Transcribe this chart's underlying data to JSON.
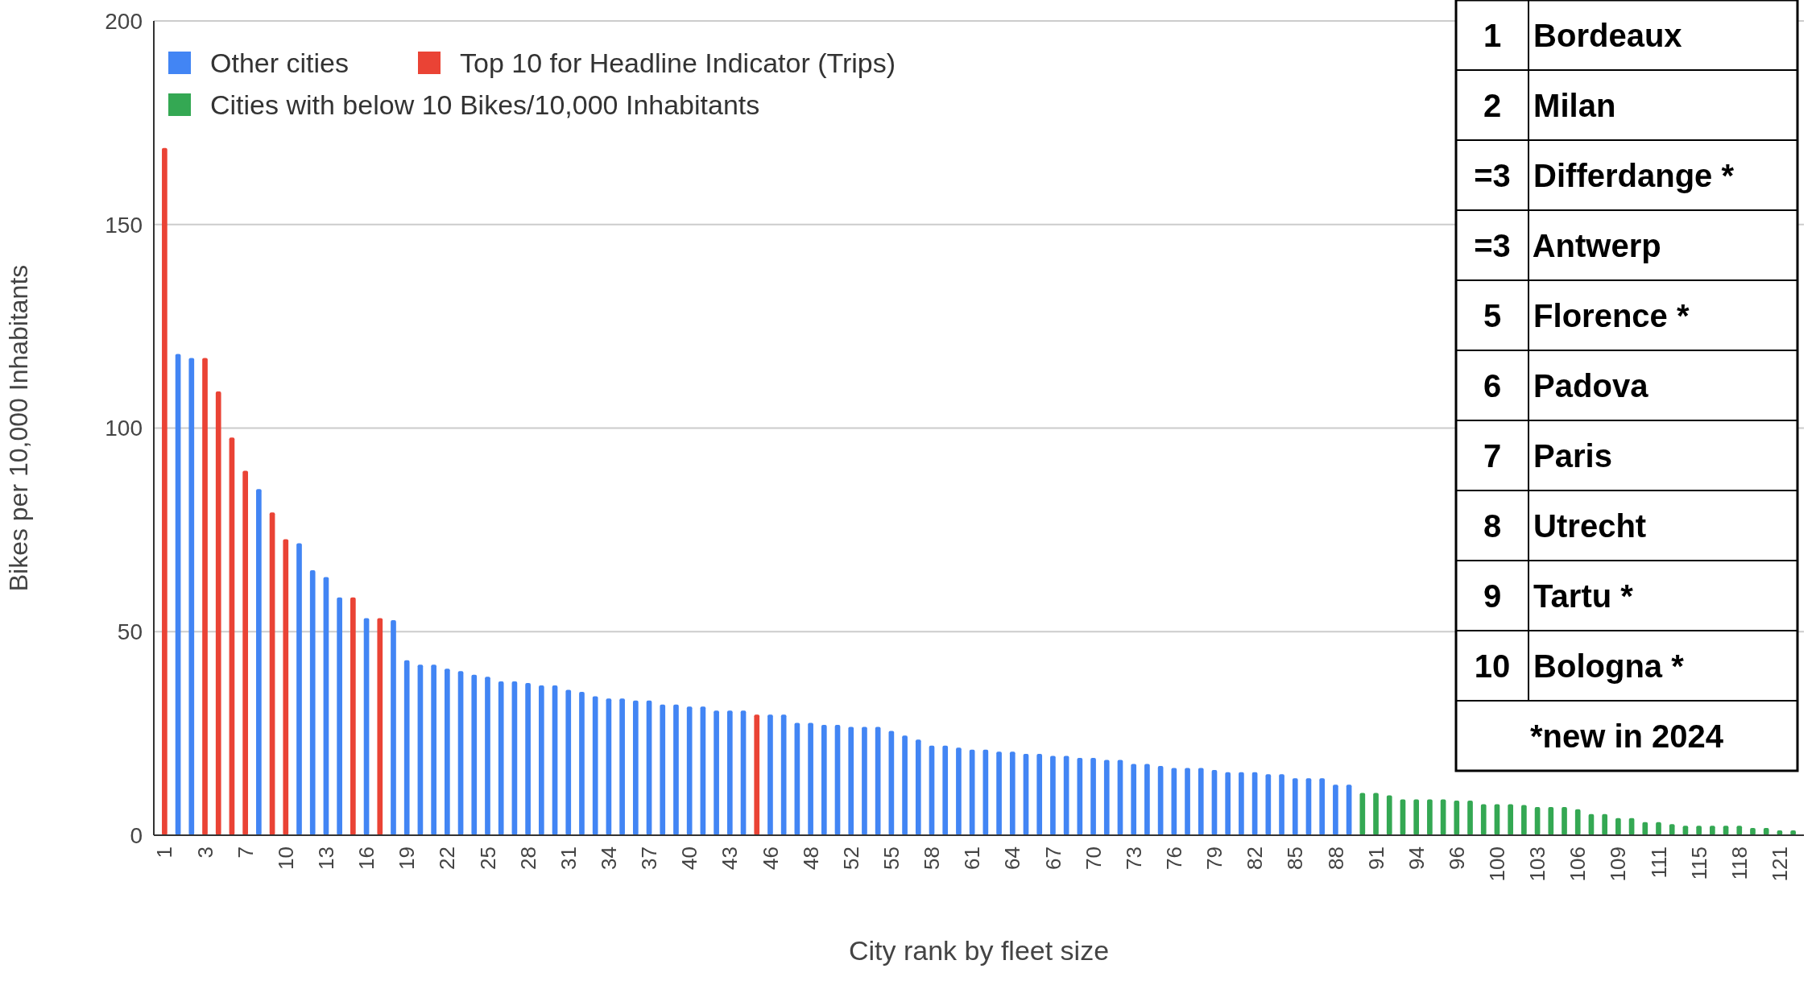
{
  "chart_data": {
    "type": "bar",
    "xlabel": "City rank by fleet size",
    "ylabel": "Bikes per 10,000 Inhabitants",
    "categories": [
      "1",
      null,
      null,
      "3",
      null,
      null,
      "7",
      null,
      null,
      "10",
      null,
      null,
      "13",
      null,
      null,
      "16",
      null,
      null,
      "19",
      null,
      null,
      "22",
      null,
      null,
      "25",
      null,
      null,
      "28",
      null,
      null,
      "31",
      null,
      null,
      "34",
      null,
      null,
      "37",
      null,
      null,
      "40",
      null,
      null,
      "43",
      null,
      null,
      "46",
      null,
      null,
      "48",
      null,
      null,
      "52",
      null,
      null,
      "55",
      null,
      null,
      "58",
      null,
      null,
      "61",
      null,
      null,
      "64",
      null,
      null,
      "67",
      null,
      null,
      "70",
      null,
      null,
      "73",
      null,
      null,
      "76",
      null,
      null,
      "79",
      null,
      null,
      "82",
      null,
      null,
      "85",
      null,
      null,
      "88",
      null,
      null,
      "91",
      null,
      null,
      "94",
      null,
      null,
      "96",
      null,
      null,
      "100",
      null,
      null,
      "103",
      null,
      null,
      "106",
      null,
      null,
      "109",
      null,
      null,
      "111",
      null,
      null,
      "115",
      null,
      null,
      "118",
      null,
      null,
      "121",
      null
    ],
    "series": [
      {
        "name": "Other cities",
        "color": "#4285f4",
        "values": [
          null,
          118.2,
          117.2,
          null,
          null,
          null,
          null,
          85.0,
          null,
          null,
          71.7,
          65.1,
          63.4,
          58.4,
          null,
          53.3,
          null,
          52.8,
          43.0,
          41.9,
          41.9,
          40.9,
          40.3,
          39.4,
          38.9,
          37.8,
          37.8,
          37.4,
          36.8,
          36.8,
          35.7,
          35.2,
          34.1,
          33.6,
          33.6,
          33.1,
          33.1,
          32.1,
          32.1,
          31.6,
          31.6,
          30.6,
          30.6,
          30.6,
          null,
          29.6,
          29.6,
          27.6,
          27.6,
          27.1,
          27.1,
          26.6,
          26.6,
          26.6,
          25.6,
          24.5,
          23.5,
          22.0,
          22.0,
          21.5,
          21.0,
          21.0,
          20.5,
          20.5,
          20.0,
          20.0,
          19.5,
          19.5,
          19.0,
          19.0,
          18.5,
          18.5,
          17.5,
          17.5,
          17.0,
          16.5,
          16.5,
          16.5,
          16.0,
          15.5,
          15.5,
          15.5,
          15.0,
          15.0,
          14.0,
          14.0,
          14.0,
          12.4,
          12.4,
          null,
          null,
          null,
          null,
          null,
          null,
          null,
          null,
          null,
          null,
          null,
          null,
          null,
          null,
          null,
          null,
          null,
          null,
          null,
          null,
          null,
          null,
          null,
          null,
          null,
          null,
          null,
          null,
          null,
          null,
          null,
          null,
          null
        ]
      },
      {
        "name": "Top 10 for Headline Indicator (Trips)",
        "color": "#ea4335",
        "values": [
          168.8,
          null,
          null,
          117.2,
          109.0,
          97.7,
          89.5,
          null,
          79.3,
          72.7,
          null,
          null,
          null,
          null,
          58.4,
          null,
          53.3,
          null,
          null,
          null,
          null,
          null,
          null,
          null,
          null,
          null,
          null,
          null,
          null,
          null,
          null,
          null,
          null,
          null,
          null,
          null,
          null,
          null,
          null,
          null,
          null,
          null,
          null,
          null,
          29.6,
          null,
          null,
          null,
          null,
          null,
          null,
          null,
          null,
          null,
          null,
          null,
          null,
          null,
          null,
          null,
          null,
          null,
          null,
          null,
          null,
          null,
          null,
          null,
          null,
          null,
          null,
          null,
          null,
          null,
          null,
          null,
          null,
          null,
          null,
          null,
          null,
          null,
          null,
          null,
          null,
          null,
          null,
          null,
          null,
          null,
          null,
          null,
          null,
          null,
          null,
          null,
          null,
          null,
          null,
          null,
          null,
          null,
          null,
          null,
          null,
          null,
          null,
          null,
          null,
          null,
          null,
          null,
          null,
          null,
          null,
          null,
          null,
          null,
          null,
          null,
          null,
          null
        ]
      },
      {
        "name": "Cities with below 10 Bikes/10,000 Inhabitants",
        "color": "#34a853",
        "values": [
          null,
          null,
          null,
          null,
          null,
          null,
          null,
          null,
          null,
          null,
          null,
          null,
          null,
          null,
          null,
          null,
          null,
          null,
          null,
          null,
          null,
          null,
          null,
          null,
          null,
          null,
          null,
          null,
          null,
          null,
          null,
          null,
          null,
          null,
          null,
          null,
          null,
          null,
          null,
          null,
          null,
          null,
          null,
          null,
          null,
          null,
          null,
          null,
          null,
          null,
          null,
          null,
          null,
          null,
          null,
          null,
          null,
          null,
          null,
          null,
          null,
          null,
          null,
          null,
          null,
          null,
          null,
          null,
          null,
          null,
          null,
          null,
          null,
          null,
          null,
          null,
          null,
          null,
          null,
          null,
          null,
          null,
          null,
          null,
          null,
          null,
          null,
          null,
          null,
          10.4,
          10.4,
          9.8,
          8.8,
          8.8,
          8.8,
          8.8,
          8.5,
          8.5,
          7.6,
          7.6,
          7.6,
          7.4,
          6.9,
          6.9,
          6.9,
          6.4,
          5.2,
          5.2,
          4.2,
          4.2,
          3.2,
          3.2,
          2.7,
          2.3,
          2.3,
          2.3,
          2.3,
          2.3,
          1.8,
          1.8,
          1.2,
          1.2
        ]
      }
    ],
    "ylim": [
      0,
      200
    ],
    "yticks": [
      0,
      50,
      100,
      150,
      200
    ],
    "grid": "y",
    "legend": "top left",
    "annotations": [
      "1 Bordeaux",
      "2 Milan",
      "=3 Differdange *",
      "=3 Antwerp",
      "5 Florence *",
      "6 Padova",
      "7 Paris",
      "8 Utrecht",
      "9 Tartu *",
      "10 Bologna *",
      "*new in 2024"
    ]
  }
}
